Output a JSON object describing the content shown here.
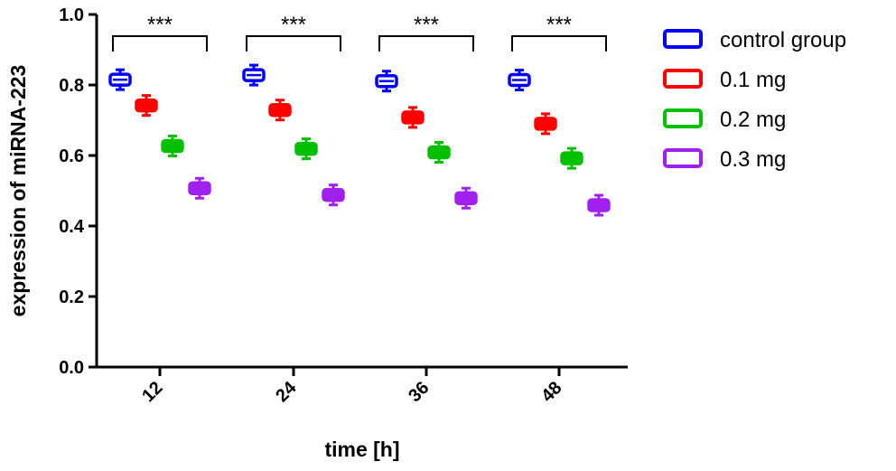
{
  "chart_data": {
    "type": "box",
    "categories": [
      "12",
      "24",
      "36",
      "48"
    ],
    "xlabel": "time [h]",
    "ylabel": "expression of miRNA-223",
    "ylim": [
      0.0,
      1.0
    ],
    "yticks": [
      "0.0",
      "0.2",
      "0.4",
      "0.6",
      "0.8",
      "1.0"
    ],
    "series": [
      {
        "name": "control group",
        "color": "#0000ff",
        "values": [
          0.815,
          0.828,
          0.811,
          0.814
        ]
      },
      {
        "name": "0.1 mg",
        "color": "#ff0000",
        "values": [
          0.742,
          0.729,
          0.708,
          0.69
        ]
      },
      {
        "name": "0.2 mg",
        "color": "#00c000",
        "values": [
          0.627,
          0.619,
          0.609,
          0.592
        ]
      },
      {
        "name": "0.3 mg",
        "color": "#a020f0",
        "values": [
          0.507,
          0.488,
          0.479,
          0.459
        ]
      }
    ],
    "significance": [
      "***",
      "***",
      "***",
      "***"
    ],
    "legend_position": "top-right",
    "grid": false
  }
}
